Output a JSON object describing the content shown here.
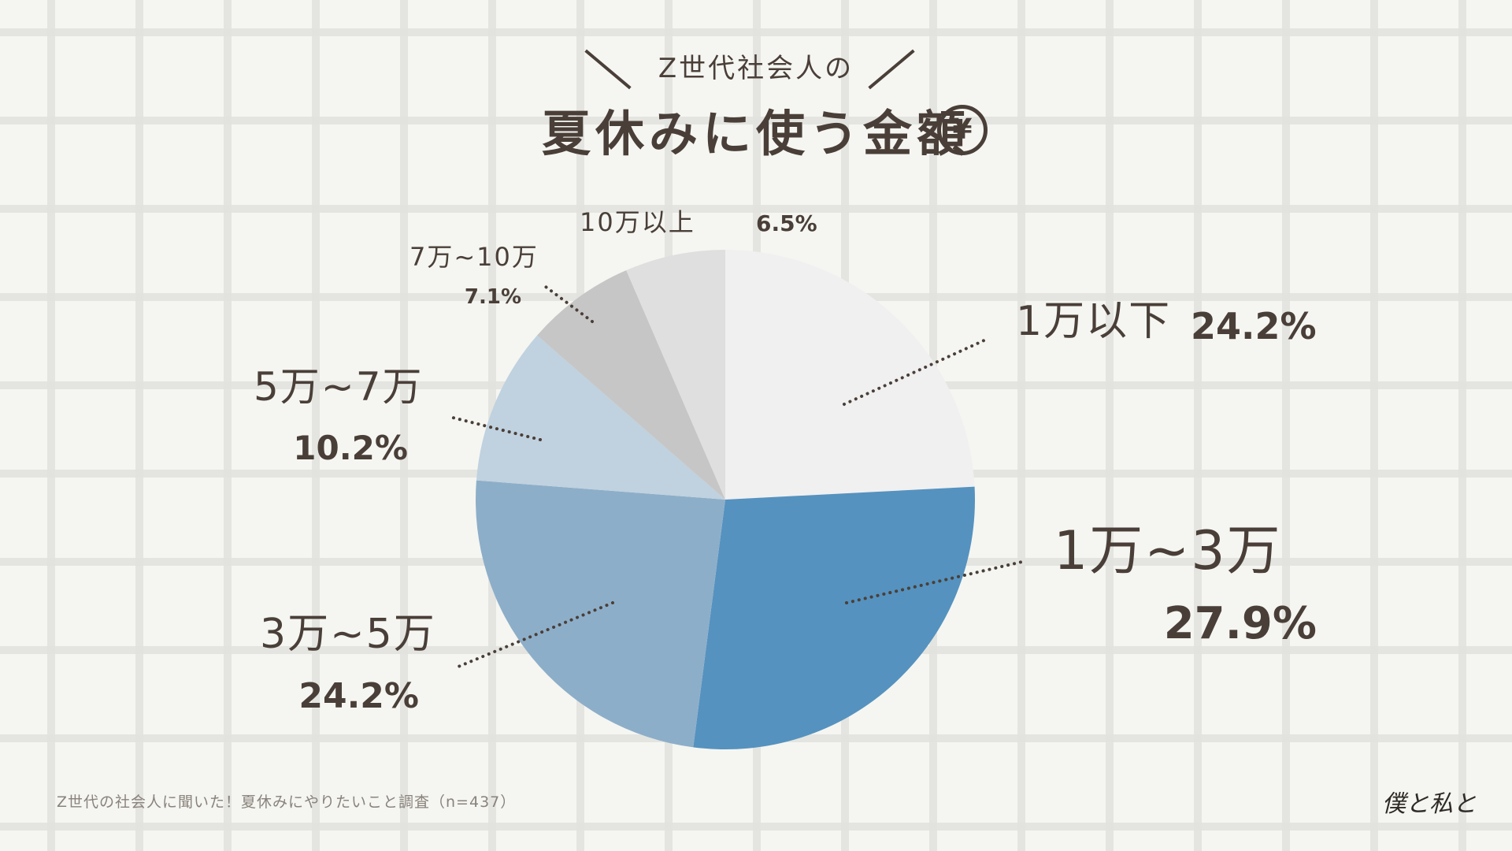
{
  "header": {
    "subtitle": "Z世代社会人の",
    "title": "夏休みに使う金額",
    "currency_symbol": "¥"
  },
  "chart_data": {
    "type": "pie",
    "categories": [
      "1万以下",
      "1万~3万",
      "3万~5万",
      "5万~7万",
      "7万~10万",
      "10万以上"
    ],
    "values": [
      24.2,
      27.9,
      24.2,
      10.2,
      7.1,
      6.5
    ],
    "value_labels": [
      "24.2%",
      "27.9%",
      "24.2%",
      "10.2%",
      "7.1%",
      "6.5%"
    ],
    "colors": [
      "#f0f0f1",
      "#5592bf",
      "#8daec9",
      "#c0d1df",
      "#c6c6c6",
      "#dfdfdf"
    ],
    "start": "12 o'clock",
    "direction": "clockwise",
    "legend": "none (direct labels with dotted leader lines)"
  },
  "footer": {
    "note": "Z世代の社会人に聞いた！夏休みにやりたいこと調査（n=437）",
    "logo_text": "僕と私と"
  }
}
